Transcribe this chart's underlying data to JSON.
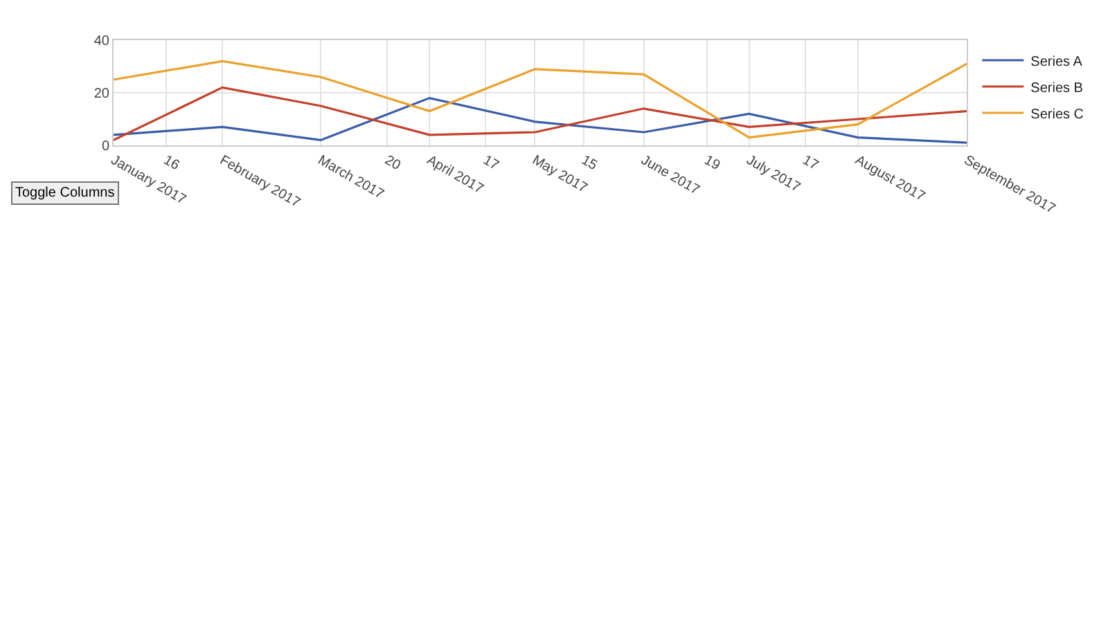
{
  "chart_data": {
    "type": "line",
    "x": [
      "2017-01",
      "2017-02",
      "2017-03",
      "2017-04",
      "2017-05",
      "2017-06",
      "2017-07",
      "2017-08",
      "2017-09"
    ],
    "series": [
      {
        "name": "Series A",
        "color": "#3a5da8",
        "values": [
          4,
          7,
          2,
          18,
          9,
          5,
          12,
          3,
          1
        ]
      },
      {
        "name": "Series B",
        "color": "#c5402a",
        "values": [
          2,
          22,
          15,
          4,
          5,
          14,
          7,
          10,
          13
        ]
      },
      {
        "name": "Series C",
        "color": "#eba02a",
        "values": [
          25,
          32,
          26,
          13,
          29,
          27,
          3,
          8,
          31
        ]
      }
    ],
    "xlim": [
      "2017-01",
      "2017-09"
    ],
    "xticks": [
      {
        "value": "2017-01",
        "label": "January 2017"
      },
      {
        "value": "2017-01-16",
        "label": "16"
      },
      {
        "value": "2017-02",
        "label": "February 2017"
      },
      {
        "value": "2017-03",
        "label": "March 2017"
      },
      {
        "value": "2017-03-20",
        "label": "20"
      },
      {
        "value": "2017-04",
        "label": "April 2017"
      },
      {
        "value": "2017-04-17",
        "label": "17"
      },
      {
        "value": "2017-05",
        "label": "May 2017"
      },
      {
        "value": "2017-05-15",
        "label": "15"
      },
      {
        "value": "2017-06",
        "label": "June 2017"
      },
      {
        "value": "2017-06-19",
        "label": "19"
      },
      {
        "value": "2017-07",
        "label": "July 2017"
      },
      {
        "value": "2017-07-17",
        "label": "17"
      },
      {
        "value": "2017-08",
        "label": "August 2017"
      },
      {
        "value": "2017-09",
        "label": "September 2017"
      }
    ],
    "ylim": [
      0,
      40
    ],
    "yticks": [
      0,
      20,
      40
    ],
    "grid": true,
    "legend": "top right",
    "marker": "none",
    "line_style": "solid",
    "annotations": [
      "Toggle Columns"
    ]
  }
}
